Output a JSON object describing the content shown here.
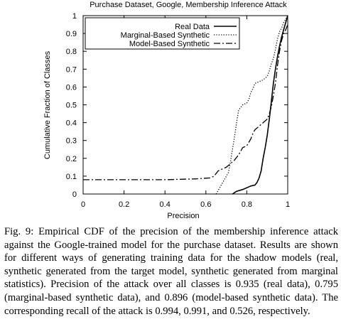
{
  "caption": "Fig. 9: Empirical CDF of the precision of the membership inference attack against the Google-trained model for the purchase dataset. Results are shown for different ways of generating training data for the shadow models (real, synthetic generated from the target model, synthetic generated from marginal statistics). Precision of the attack over all classes is 0.935 (real data), 0.795 (marginal-based synthetic data), and 0.896 (model-based synthetic data). The corresponding recall of the attack is 0.994, 0.991, and 0.526, respectively.",
  "chart_data": {
    "type": "line",
    "title": "Purchase Dataset, Google, Membership Inference Attack",
    "xlabel": "Precision",
    "ylabel": "Cumulative Fraction of Classes",
    "xlim": [
      0,
      1
    ],
    "ylim": [
      0,
      1
    ],
    "xticks": [
      "0",
      "0.2",
      "0.4",
      "0.6",
      "0.8",
      "1"
    ],
    "yticks": [
      "0",
      "0.1",
      "0.2",
      "0.3",
      "0.4",
      "0.5",
      "0.6",
      "0.7",
      "0.8",
      "0.9",
      "1"
    ],
    "grid": false,
    "legend_position": "top-center",
    "series": [
      {
        "name": "Real Data",
        "style": "solid",
        "color": "#000000",
        "points": [
          [
            0.73,
            0.0
          ],
          [
            0.75,
            0.015
          ],
          [
            0.78,
            0.025
          ],
          [
            0.8,
            0.035
          ],
          [
            0.82,
            0.045
          ],
          [
            0.84,
            0.05
          ],
          [
            0.85,
            0.065
          ],
          [
            0.86,
            0.09
          ],
          [
            0.87,
            0.13
          ],
          [
            0.88,
            0.2
          ],
          [
            0.89,
            0.26
          ],
          [
            0.9,
            0.33
          ],
          [
            0.91,
            0.42
          ],
          [
            0.92,
            0.52
          ],
          [
            0.93,
            0.62
          ],
          [
            0.94,
            0.7
          ],
          [
            0.95,
            0.77
          ],
          [
            0.96,
            0.83
          ],
          [
            0.97,
            0.88
          ],
          [
            0.98,
            0.92
          ],
          [
            0.99,
            0.96
          ],
          [
            1.0,
            1.0
          ]
        ]
      },
      {
        "name": "Marginal-Based Synthetic",
        "style": "dotted",
        "color": "#000000",
        "points": [
          [
            0.65,
            0.0
          ],
          [
            0.67,
            0.04
          ],
          [
            0.69,
            0.08
          ],
          [
            0.71,
            0.12
          ],
          [
            0.72,
            0.18
          ],
          [
            0.73,
            0.25
          ],
          [
            0.74,
            0.32
          ],
          [
            0.75,
            0.4
          ],
          [
            0.76,
            0.47
          ],
          [
            0.78,
            0.5
          ],
          [
            0.8,
            0.51
          ],
          [
            0.81,
            0.53
          ],
          [
            0.82,
            0.57
          ],
          [
            0.83,
            0.59
          ],
          [
            0.84,
            0.62
          ],
          [
            0.86,
            0.63
          ],
          [
            0.88,
            0.64
          ],
          [
            0.9,
            0.66
          ],
          [
            0.91,
            0.69
          ],
          [
            0.92,
            0.73
          ],
          [
            0.93,
            0.76
          ],
          [
            0.94,
            0.81
          ],
          [
            0.95,
            0.87
          ],
          [
            0.96,
            0.91
          ],
          [
            0.97,
            0.93
          ],
          [
            0.98,
            0.96
          ],
          [
            0.99,
            0.98
          ],
          [
            1.0,
            1.0
          ]
        ]
      },
      {
        "name": "Model-Based Synthetic",
        "style": "dashdot",
        "color": "#000000",
        "points": [
          [
            0.0,
            0.08
          ],
          [
            0.2,
            0.08
          ],
          [
            0.4,
            0.08
          ],
          [
            0.55,
            0.085
          ],
          [
            0.62,
            0.09
          ],
          [
            0.64,
            0.1
          ],
          [
            0.66,
            0.13
          ],
          [
            0.68,
            0.14
          ],
          [
            0.7,
            0.15
          ],
          [
            0.72,
            0.17
          ],
          [
            0.74,
            0.19
          ],
          [
            0.76,
            0.22
          ],
          [
            0.78,
            0.26
          ],
          [
            0.8,
            0.27
          ],
          [
            0.82,
            0.31
          ],
          [
            0.83,
            0.34
          ],
          [
            0.84,
            0.36
          ],
          [
            0.86,
            0.38
          ],
          [
            0.88,
            0.4
          ],
          [
            0.9,
            0.42
          ],
          [
            0.91,
            0.45
          ],
          [
            0.92,
            0.49
          ],
          [
            0.93,
            0.55
          ],
          [
            0.94,
            0.62
          ],
          [
            0.95,
            0.72
          ],
          [
            0.96,
            0.8
          ],
          [
            0.97,
            0.86
          ],
          [
            0.98,
            0.9
          ],
          [
            0.99,
            0.92
          ],
          [
            1.0,
            0.95
          ]
        ]
      }
    ]
  }
}
